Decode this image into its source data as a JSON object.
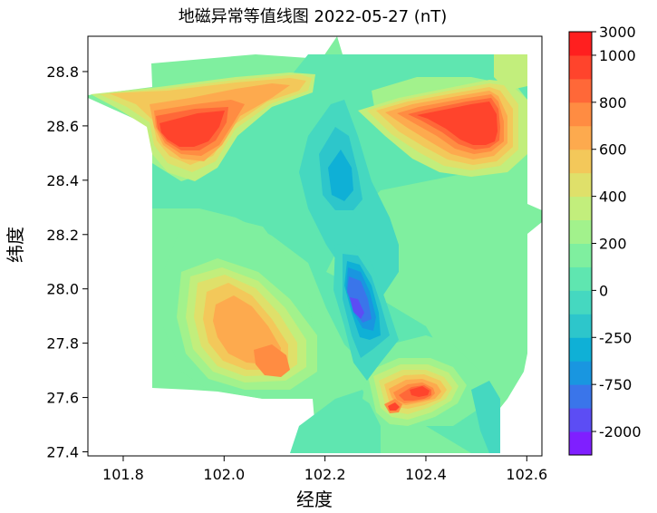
{
  "chart_data": {
    "type": "filled-contour",
    "title": "地磁异常等值线图 2022-05-27 (nT)",
    "xlabel": "经度",
    "ylabel": "纬度",
    "xlim": [
      101.73,
      102.63
    ],
    "ylim": [
      27.385,
      28.93
    ],
    "x_ticks": [
      "101.8",
      "102.0",
      "102.2",
      "102.4",
      "102.6"
    ],
    "x_tick_values": [
      101.8,
      102.0,
      102.2,
      102.4,
      102.6
    ],
    "y_ticks": [
      "27.4",
      "27.6",
      "27.8",
      "28.0",
      "28.2",
      "28.4",
      "28.6",
      "28.8"
    ],
    "y_tick_values": [
      27.4,
      27.6,
      27.8,
      28.0,
      28.2,
      28.4,
      28.6,
      28.8
    ],
    "colorbar": {
      "labels": [
        "3000",
        "1000",
        "900",
        "800",
        "700",
        "600",
        "500",
        "400",
        "300",
        "200",
        "100",
        "0",
        "-100",
        "-250",
        "-500",
        "-750",
        "-1000",
        "-2000"
      ],
      "shown_labels": [
        "3000",
        "1000",
        "800",
        "600",
        "400",
        "200",
        "0",
        "-250",
        "-750",
        "-2000"
      ],
      "colors": [
        "#7f1fff",
        "#5c4df4",
        "#3a75ea",
        "#1996e0",
        "#0fb0d6",
        "#2dc6cb",
        "#45d8c0",
        "#5fe6b0",
        "#7fef9f",
        "#a2f28c",
        "#c2ee7c",
        "#dfe06a",
        "#f3c85a",
        "#fdaa4e",
        "#ff8c42",
        "#ff6838",
        "#ff442c",
        "#ff1f1f"
      ]
    },
    "anomaly_centers": [
      {
        "lon": 101.94,
        "lat": 28.57,
        "peak": "1000-3000",
        "sign": "positive"
      },
      {
        "lon": 102.5,
        "lat": 28.58,
        "peak": "1000-3000",
        "sign": "positive"
      },
      {
        "lon": 102.02,
        "lat": 27.8,
        "peak": "800-900",
        "sign": "positive"
      },
      {
        "lon": 102.1,
        "lat": 27.7,
        "peak": "900-1000",
        "sign": "positive"
      },
      {
        "lon": 102.4,
        "lat": 27.64,
        "peak": "1000-3000",
        "sign": "positive"
      },
      {
        "lon": 102.26,
        "lat": 27.93,
        "peak": "-1000 to -2000",
        "sign": "negative"
      },
      {
        "lon": 102.24,
        "lat": 28.42,
        "peak": "-100 to -250",
        "sign": "negative"
      }
    ]
  }
}
